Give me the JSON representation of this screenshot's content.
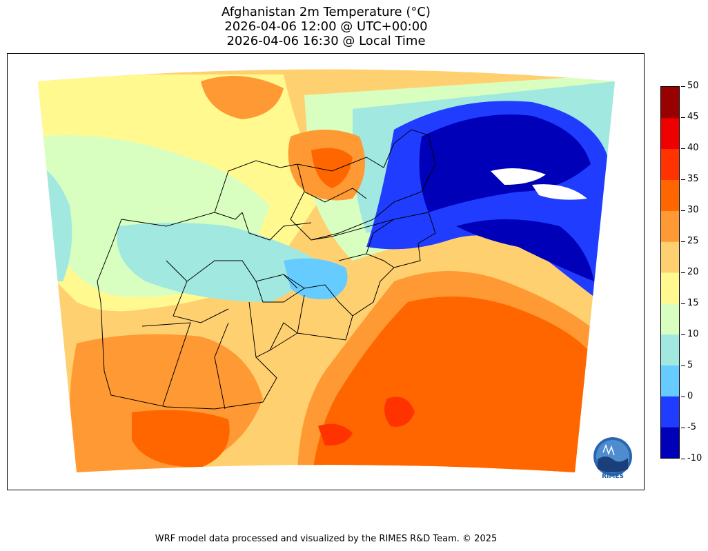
{
  "title": {
    "line1": "Afghanistan 2m Temperature (°C)",
    "line2": "2026-04-06 12:00 @ UTC+00:00",
    "line3": "2026-04-06 16:30 @ Local Time"
  },
  "colorbar": {
    "ticks": [
      "50",
      "45",
      "40",
      "35",
      "30",
      "25",
      "20",
      "15",
      "10",
      "5",
      "0",
      "-5",
      "-10"
    ],
    "levels": [
      {
        "range": [
          -10,
          -5
        ],
        "color": "#0000b8"
      },
      {
        "range": [
          -5,
          0
        ],
        "color": "#1f3cff"
      },
      {
        "range": [
          0,
          5
        ],
        "color": "#66ccff"
      },
      {
        "range": [
          5,
          10
        ],
        "color": "#a0e8e0"
      },
      {
        "range": [
          10,
          15
        ],
        "color": "#d8ffc0"
      },
      {
        "range": [
          15,
          20
        ],
        "color": "#fff990"
      },
      {
        "range": [
          20,
          25
        ],
        "color": "#ffd070"
      },
      {
        "range": [
          25,
          30
        ],
        "color": "#ff9933"
      },
      {
        "range": [
          30,
          35
        ],
        "color": "#ff6600"
      },
      {
        "range": [
          35,
          40
        ],
        "color": "#ff3300"
      },
      {
        "range": [
          40,
          45
        ],
        "color": "#ee0000"
      },
      {
        "range": [
          45,
          50
        ],
        "color": "#990000"
      }
    ]
  },
  "logo": {
    "text": "RIMES"
  },
  "footer": "WRF model data processed and visualized by the RIMES R&D Team. © 2025"
}
